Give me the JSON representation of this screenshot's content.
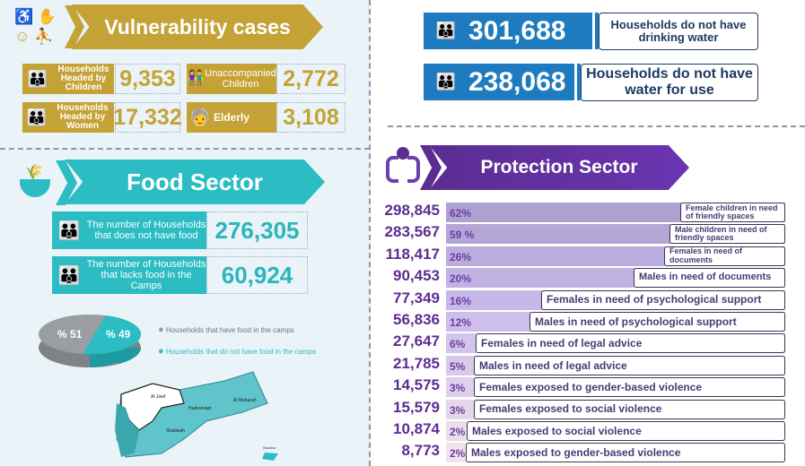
{
  "vulnerability": {
    "title": "Vulnerability cases",
    "color": "#c4a235",
    "items": [
      {
        "label": "Households Headed by Children",
        "value": "9,353",
        "icon": "family-icon"
      },
      {
        "label": "Unaccompanied Children",
        "value": "2,772",
        "icon": "children-icon"
      },
      {
        "label": "Households Headed by Women",
        "value": "17,332",
        "icon": "family-icon"
      },
      {
        "label": "Elderly",
        "value": "3,108",
        "icon": "elderly-icon"
      }
    ]
  },
  "food": {
    "title": "Food Sector",
    "color": "#2bbcc4",
    "items": [
      {
        "label": "The number of Households that does not have food",
        "value": "276,305"
      },
      {
        "label": "The number of Households that lacks  food in the Camps",
        "value": "60,924"
      }
    ],
    "pie": {
      "slices": [
        {
          "label": "% 51",
          "value": 51,
          "legend": "Households that have food in the camps",
          "color": "#9a9ea3"
        },
        {
          "label": "% 49",
          "value": 49,
          "legend": "Households that do not have food in the camps",
          "color": "#2bbcc4"
        }
      ]
    },
    "map_labels": [
      "Al Jawf",
      "Hadramawt",
      "Al Maharah",
      "Shabwah",
      "Socotra"
    ]
  },
  "water": {
    "color": "#1f7bc0",
    "items": [
      {
        "value": "301,688",
        "label": "Households do not have drinking water"
      },
      {
        "value": "238,068",
        "label": "Households do not have water for use"
      }
    ]
  },
  "protection": {
    "title": "Protection Sector",
    "color": "#5b2d91",
    "rows": [
      {
        "value": "298,845",
        "pct": "62%",
        "label": "Female children in need of friendly spaces"
      },
      {
        "value": "283,567",
        "pct": "59 %",
        "label": "Male children in need of friendly spaces"
      },
      {
        "value": "118,417",
        "pct": "26%",
        "label": "Females in need of documents"
      },
      {
        "value": "90,453",
        "pct": "20%",
        "label": "Males in need of documents"
      },
      {
        "value": "77,349",
        "pct": "16%",
        "label": "Females in need of psychological support"
      },
      {
        "value": "56,836",
        "pct": "12%",
        "label": "Males in need of psychological support"
      },
      {
        "value": "27,647",
        "pct": "6%",
        "label": "Females in need of legal advice"
      },
      {
        "value": "21,785",
        "pct": "5%",
        "label": "Males in need of legal advice"
      },
      {
        "value": "14,575",
        "pct": "3%",
        "label": "Females exposed to gender-based violence"
      },
      {
        "value": "15,579",
        "pct": "3%",
        "label": "Females exposed to social violence"
      },
      {
        "value": "10,874",
        "pct": "2%",
        "label": "Males exposed to social violence"
      },
      {
        "value": "8,773",
        "pct": "2%",
        "label": "Males exposed to gender-based violence"
      }
    ]
  }
}
